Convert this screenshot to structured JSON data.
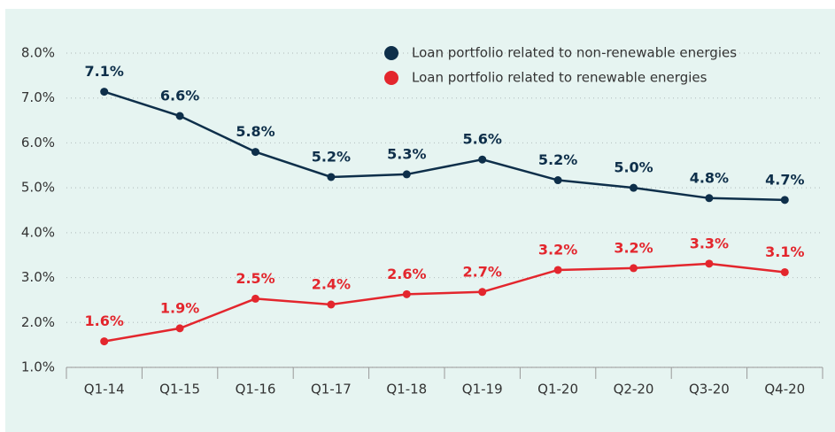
{
  "chart_data": {
    "type": "line",
    "categories": [
      "Q1-14",
      "Q1-15",
      "Q1-16",
      "Q1-17",
      "Q1-18",
      "Q1-19",
      "Q1-20",
      "Q2-20",
      "Q3-20",
      "Q4-20"
    ],
    "series": [
      {
        "name": "Loan portfolio related to non-renewable energies",
        "color": "#0e2f4a",
        "values": [
          7.14,
          6.6,
          5.8,
          5.24,
          5.3,
          5.63,
          5.17,
          5.0,
          4.77,
          4.73
        ],
        "value_labels": [
          "7.1%",
          "6.6%",
          "5.8%",
          "5.2%",
          "5.3%",
          "5.6%",
          "5.2%",
          "5.0%",
          "4.8%",
          "4.7%"
        ]
      },
      {
        "name": "Loan portfolio related to renewable energies",
        "color": "#e3262d",
        "values": [
          1.58,
          1.87,
          2.53,
          2.4,
          2.63,
          2.68,
          3.17,
          3.21,
          3.31,
          3.12
        ],
        "value_labels": [
          "1.6%",
          "1.9%",
          "2.5%",
          "2.4%",
          "2.6%",
          "2.7%",
          "3.2%",
          "3.2%",
          "3.3%",
          "3.1%"
        ]
      }
    ],
    "ylim": [
      1,
      8
    ],
    "yticks": [
      {
        "value": 1,
        "label": "1.0%"
      },
      {
        "value": 2,
        "label": "2.0%"
      },
      {
        "value": 3,
        "label": "3.0%"
      },
      {
        "value": 4,
        "label": "4.0%"
      },
      {
        "value": 5,
        "label": "5.0%"
      },
      {
        "value": 6,
        "label": "6.0%"
      },
      {
        "value": 7,
        "label": "7.0%"
      },
      {
        "value": 8,
        "label": "8.0%"
      }
    ],
    "grid": true,
    "legend": "top-right"
  }
}
